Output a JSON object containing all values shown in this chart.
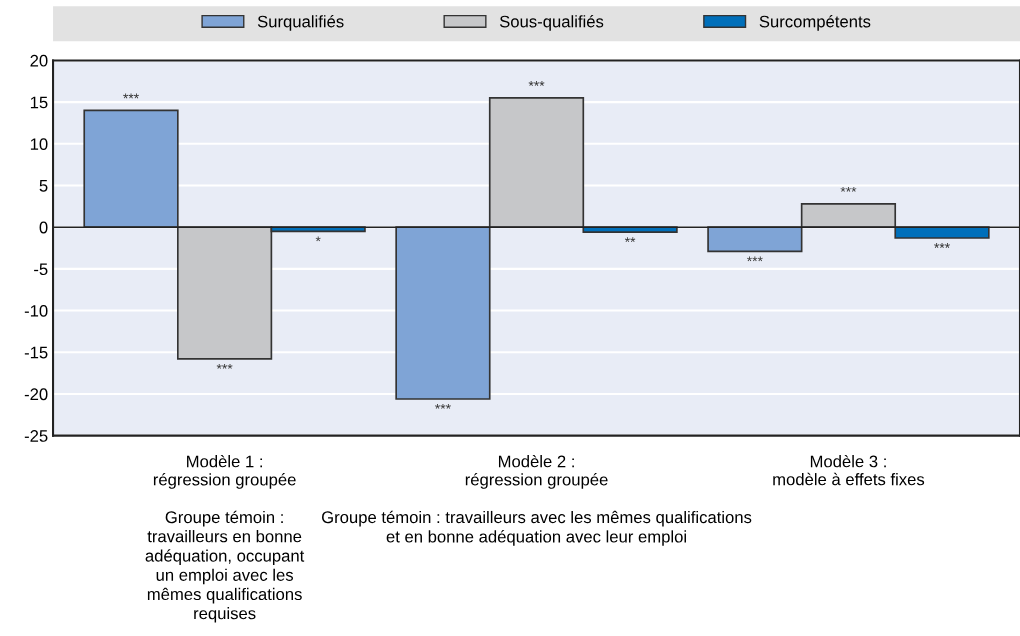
{
  "chart_data": {
    "type": "bar",
    "categories": [
      "Modèle 1 :\nrégression groupée",
      "Modèle 2 :\nrégression groupée",
      "Modèle 3 :\nmodèle à effets fixes"
    ],
    "series": [
      {
        "name": "Surqualifiés",
        "color": "#7fa4d6",
        "values": [
          14.0,
          -20.6,
          -2.9
        ],
        "value_labels": [
          "***",
          "***",
          "***"
        ]
      },
      {
        "name": "Sous-qualifiés",
        "color": "#c6c7c9",
        "values": [
          -15.8,
          15.5,
          2.8
        ],
        "value_labels": [
          "***",
          "***",
          "***"
        ]
      },
      {
        "name": "Surcompétents",
        "color": "#006fba",
        "values": [
          -0.5,
          -0.6,
          -1.3
        ],
        "value_labels": [
          "*",
          "**",
          "***"
        ]
      }
    ],
    "ylim": [
      -25,
      20
    ],
    "yticks": [
      -25,
      -20,
      -15,
      -10,
      -5,
      0,
      5,
      10,
      15,
      20
    ],
    "grid": "y",
    "legend": "top",
    "annotations": [
      "Groupe témoin :\ntravailleurs en bonne\nadéquation, occupant\nun emploi avec les\nmêmes qualifications\nrequises",
      "Groupe témoin : travailleurs avec les mêmes qualifications\net en bonne adéquation avec leur emploi"
    ]
  }
}
